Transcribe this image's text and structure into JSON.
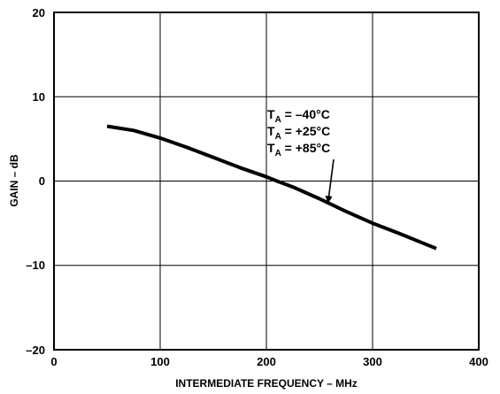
{
  "chart_data": {
    "type": "line",
    "xlabel": "INTERMEDIATE FREQUENCY – MHz",
    "ylabel": "GAIN – dB",
    "xlim": [
      0,
      400
    ],
    "ylim": [
      -20,
      20
    ],
    "x_ticks": [
      "0",
      "100",
      "200",
      "300",
      "400"
    ],
    "y_ticks": [
      "–20",
      "–10",
      "0",
      "10",
      "20"
    ],
    "grid": true,
    "series": [
      {
        "x": [
          50,
          75,
          100,
          125,
          150,
          175,
          200,
          210,
          225,
          250,
          275,
          300,
          325,
          360
        ],
        "y": [
          6.5,
          6.0,
          5.1,
          4.0,
          2.8,
          1.6,
          0.5,
          0.0,
          -0.7,
          -2.1,
          -3.6,
          -5.0,
          -6.2,
          -8.0
        ]
      }
    ],
    "annotations": [
      {
        "main": "T",
        "sub": "A",
        "rest": " = –40°C"
      },
      {
        "main": "T",
        "sub": "A",
        "rest": " = +25°C"
      },
      {
        "main": "T",
        "sub": "A",
        "rest": " = +85°C"
      }
    ],
    "arrow_target": {
      "x": 258,
      "y": -2.6
    }
  }
}
